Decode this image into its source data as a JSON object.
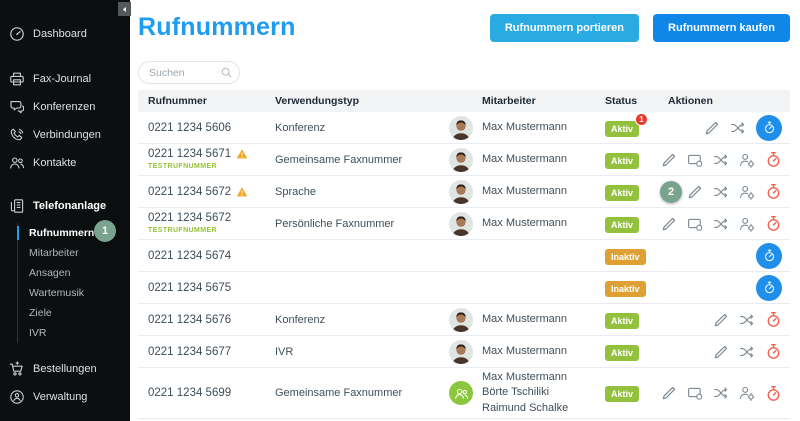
{
  "sidebar": {
    "items": [
      {
        "id": "dashboard",
        "label": "Dashboard",
        "icon": "dashboard"
      },
      {
        "id": "fax-journal",
        "label": "Fax-Journal",
        "icon": "printer"
      },
      {
        "id": "konferenzen",
        "label": "Konferenzen",
        "icon": "chat"
      },
      {
        "id": "verbindungen",
        "label": "Verbindungen",
        "icon": "phone"
      },
      {
        "id": "kontakte",
        "label": "Kontakte",
        "icon": "people"
      }
    ],
    "section": {
      "id": "telefonanlage",
      "label": "Telefonanlage",
      "icon": "pbx"
    },
    "subitems": [
      {
        "id": "rufnummern",
        "label": "Rufnummern",
        "active": true,
        "annotation": "1"
      },
      {
        "id": "mitarbeiter",
        "label": "Mitarbeiter",
        "active": false
      },
      {
        "id": "ansagen",
        "label": "Ansagen",
        "active": false
      },
      {
        "id": "wartemusik",
        "label": "Wartemusik",
        "active": false
      },
      {
        "id": "ziele",
        "label": "Ziele",
        "active": false
      },
      {
        "id": "ivr",
        "label": "IVR",
        "active": false
      }
    ],
    "footer_items": [
      {
        "id": "bestellungen",
        "label": "Bestellungen",
        "icon": "cart"
      },
      {
        "id": "verwaltung",
        "label": "Verwaltung",
        "icon": "admin"
      }
    ]
  },
  "header": {
    "title": "Rufnummern",
    "buttons": [
      {
        "id": "rufnummern-portieren",
        "label": "Rufnummern portieren",
        "color": "#29ABE2"
      },
      {
        "id": "rufnummern-kaufen",
        "label": "Rufnummern kaufen",
        "color": "#0E87E9"
      }
    ]
  },
  "search": {
    "placeholder": "Suchen"
  },
  "table": {
    "columns": [
      "Rufnummer",
      "Verwendungstyp",
      "Mitarbeiter",
      "Status",
      "Aktionen"
    ],
    "rows": [
      {
        "number": "0221 1234 5606",
        "warning": false,
        "test_label": "",
        "usage": "Konferenz",
        "avatar": "person",
        "employees": [
          "Max Mustermann"
        ],
        "status": {
          "label": "Aktiv",
          "type": "active",
          "notification": "1"
        },
        "annotation": "",
        "actions": [
          {
            "icon": "edit"
          },
          {
            "icon": "shuffle"
          },
          {
            "icon": "timer",
            "variant": "blue-circle"
          }
        ]
      },
      {
        "number": "0221 1234 5671",
        "warning": true,
        "test_label": "TESTRUFNUMMER",
        "usage": "Gemeinsame Faxnummer",
        "avatar": "person",
        "employees": [
          "Max Mustermann"
        ],
        "status": {
          "label": "Aktiv",
          "type": "active",
          "notification": ""
        },
        "annotation": "",
        "actions": [
          {
            "icon": "edit"
          },
          {
            "icon": "screen"
          },
          {
            "icon": "shuffle"
          },
          {
            "icon": "user-gear"
          },
          {
            "icon": "timer",
            "variant": "red"
          }
        ]
      },
      {
        "number": "0221 1234 5672",
        "warning": true,
        "test_label": "",
        "usage": "Sprache",
        "avatar": "person",
        "employees": [
          "Max Mustermann"
        ],
        "status": {
          "label": "Aktiv",
          "type": "active",
          "notification": ""
        },
        "annotation": "2",
        "actions": [
          {
            "icon": "edit"
          },
          {
            "icon": "shuffle"
          },
          {
            "icon": "user-gear"
          },
          {
            "icon": "timer",
            "variant": "red"
          }
        ]
      },
      {
        "number": "0221 1234 5672",
        "warning": false,
        "test_label": "TESTRUFNUMMER",
        "usage": "Persönliche Faxnummer",
        "avatar": "person",
        "employees": [
          "Max Mustermann"
        ],
        "status": {
          "label": "Aktiv",
          "type": "active",
          "notification": ""
        },
        "annotation": "",
        "actions": [
          {
            "icon": "edit"
          },
          {
            "icon": "screen"
          },
          {
            "icon": "shuffle"
          },
          {
            "icon": "user-gear"
          },
          {
            "icon": "timer",
            "variant": "red"
          }
        ]
      },
      {
        "number": "0221 1234 5674",
        "warning": false,
        "test_label": "",
        "usage": "",
        "avatar": "",
        "employees": [],
        "status": {
          "label": "Inaktiv",
          "type": "inactive",
          "notification": ""
        },
        "annotation": "",
        "actions": [
          {
            "icon": "timer",
            "variant": "blue-circle"
          }
        ]
      },
      {
        "number": "0221 1234 5675",
        "warning": false,
        "test_label": "",
        "usage": "",
        "avatar": "",
        "employees": [],
        "status": {
          "label": "Inaktiv",
          "type": "inactive",
          "notification": ""
        },
        "annotation": "",
        "actions": [
          {
            "icon": "timer",
            "variant": "blue-circle"
          }
        ]
      },
      {
        "number": "0221 1234 5676",
        "warning": false,
        "test_label": "",
        "usage": "Konferenz",
        "avatar": "person",
        "employees": [
          "Max Mustermann"
        ],
        "status": {
          "label": "Aktiv",
          "type": "active",
          "notification": ""
        },
        "annotation": "",
        "actions": [
          {
            "icon": "edit"
          },
          {
            "icon": "shuffle"
          },
          {
            "icon": "timer",
            "variant": "red"
          }
        ]
      },
      {
        "number": "0221 1234 5677",
        "warning": false,
        "test_label": "",
        "usage": "IVR",
        "avatar": "person",
        "employees": [
          "Max Mustermann"
        ],
        "status": {
          "label": "Aktiv",
          "type": "active",
          "notification": ""
        },
        "annotation": "",
        "actions": [
          {
            "icon": "edit"
          },
          {
            "icon": "shuffle"
          },
          {
            "icon": "timer",
            "variant": "red"
          }
        ]
      },
      {
        "number": "0221 1234 5699",
        "warning": false,
        "test_label": "",
        "usage": "Gemeinsame Faxnummer",
        "avatar": "group",
        "employees": [
          "Max Mustermann",
          "Börte Tschiliki",
          "Raimund Schalke"
        ],
        "status": {
          "label": "Aktiv",
          "type": "active",
          "notification": ""
        },
        "annotation": "",
        "actions": [
          {
            "icon": "edit"
          },
          {
            "icon": "screen"
          },
          {
            "icon": "shuffle"
          },
          {
            "icon": "user-gear"
          },
          {
            "icon": "timer",
            "variant": "red"
          }
        ]
      }
    ]
  },
  "colors": {
    "accent_blue": "#1E9CF0",
    "button_light_blue": "#29ABE2",
    "button_dark_blue": "#0E87E9",
    "status_active_green": "#94C13D",
    "status_inactive_orange": "#DFA033",
    "notification_red": "#E8392B",
    "timer_red": "#F2604D",
    "timer_blue_circle": "#1E8FEB",
    "annotation_green": "#7AA38F",
    "warning_amber": "#F5A623",
    "sidebar_bg": "#0B0F10"
  }
}
